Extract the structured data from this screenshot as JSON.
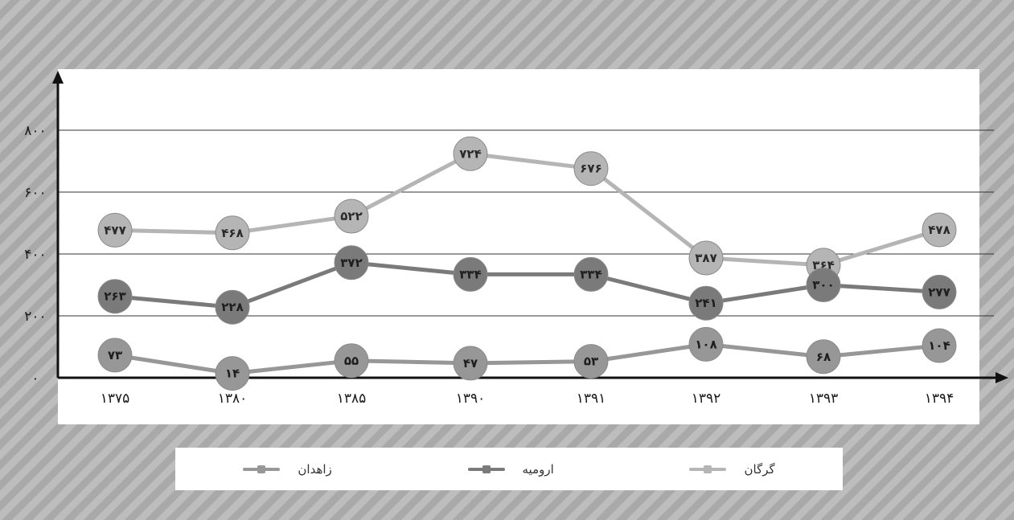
{
  "chart_data": {
    "type": "line",
    "categories": [
      "۱۳۷۵",
      "۱۳۸۰",
      "۱۳۸۵",
      "۱۳۹۰",
      "۱۳۹۱",
      "۱۳۹۲",
      "۱۳۹۳",
      "۱۳۹۴"
    ],
    "y_ticks": [
      "۰",
      "۲۰۰",
      "۴۰۰",
      "۶۰۰",
      "۸۰۰"
    ],
    "ylim": [
      0,
      800
    ],
    "grid": true,
    "legend_position": "bottom",
    "series": [
      {
        "name": "گرگان",
        "color": "#b5b5b5",
        "values": [
          477,
          468,
          522,
          724,
          676,
          387,
          364,
          478
        ],
        "labels": [
          "۴۷۷",
          "۴۶۸",
          "۵۲۲",
          "۷۲۴",
          "۶۷۶",
          "۳۸۷",
          "۳۶۴",
          "۴۷۸"
        ]
      },
      {
        "name": "ارومیه",
        "color": "#7a7a7a",
        "values": [
          263,
          228,
          372,
          334,
          334,
          241,
          300,
          277
        ],
        "labels": [
          "۲۶۳",
          "۲۲۸",
          "۳۷۲",
          "۳۳۴",
          "۳۳۴",
          "۲۴۱",
          "۳۰۰",
          "۲۷۷"
        ]
      },
      {
        "name": "زاهدان",
        "color": "#979797",
        "values": [
          73,
          14,
          55,
          47,
          53,
          108,
          68,
          104
        ],
        "labels": [
          "۷۳",
          "۱۴",
          "۵۵",
          "۴۷",
          "۵۳",
          "۱۰۸",
          "۶۸",
          "۱۰۴"
        ]
      }
    ]
  },
  "legend": [
    {
      "label": "گرگان",
      "color": "#b5b5b5"
    },
    {
      "label": "ارومیه",
      "color": "#7a7a7a"
    },
    {
      "label": "زاهدان",
      "color": "#979797"
    }
  ]
}
